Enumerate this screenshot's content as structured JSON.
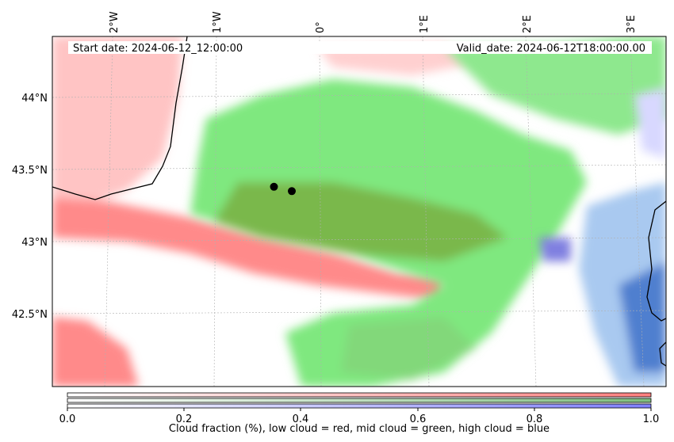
{
  "map": {
    "start_date": "Start date: 2024-06-12_12:00:00",
    "valid_date": "Valid_date: 2024-06-12T18:00:00.00",
    "lon_ticks": [
      "2°W",
      "1°W",
      "0°",
      "1°E",
      "2°E",
      "3°E"
    ],
    "lat_ticks": [
      "44°N",
      "43.5°N",
      "43°N",
      "42.5°N"
    ],
    "markers": [
      {
        "lon": -0.45,
        "lat": 43.38
      },
      {
        "lon": -0.28,
        "lat": 43.35
      }
    ],
    "layers": {
      "low_cloud": "red",
      "mid_cloud": "green",
      "high_cloud": "blue"
    },
    "colors": {
      "low": "#ff7f7f",
      "mid": "#7ff27f",
      "high": "#7f7fff",
      "coast": "#000000"
    }
  },
  "colorbar": {
    "ticks": [
      "0.0",
      "0.2",
      "0.4",
      "0.6",
      "0.8",
      "1.0"
    ],
    "label": "Cloud fraction (%), low cloud = red, mid cloud = green, high cloud = blue"
  }
}
